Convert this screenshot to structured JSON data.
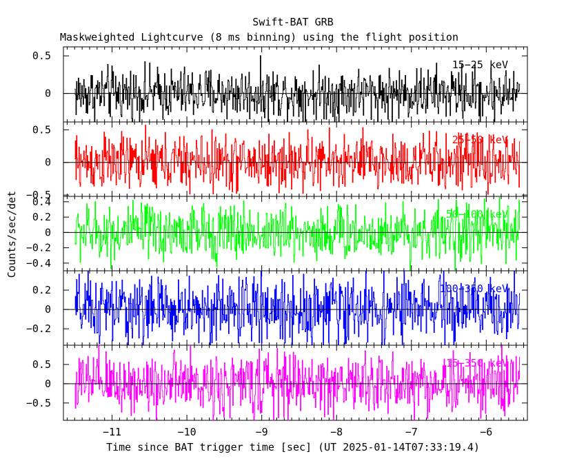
{
  "chart_data": {
    "type": "line",
    "title": "Swift-BAT GRB",
    "subtitle": "Maskweighted Lightcurve (8 ms binning) using the flight position",
    "xlabel": "Time since BAT trigger time [sec] (UT 2025-01-14T07:33:19.4)",
    "ylabel": "Counts/sec/det",
    "xlim": [
      -11.65,
      -5.45
    ],
    "x_range_data": [
      -11.5,
      -5.55
    ],
    "bin_width_sec": 0.008,
    "x_ticks": [
      -11,
      -10,
      -9,
      -8,
      -7,
      -6
    ],
    "x_tick_labels": [
      "−11",
      "−10",
      "−9",
      "−8",
      "−7",
      "−6"
    ],
    "panels": [
      {
        "band": "15-25 keV",
        "label": "15−25 keV",
        "color": "#000000",
        "ylim": [
          -0.38,
          0.62
        ],
        "yticks": [
          0,
          0.5
        ],
        "ytick_labels": [
          "0",
          "0.5"
        ],
        "noise_amplitude": 0.3,
        "baseline": 0
      },
      {
        "band": "25-50 keV",
        "label": "25−50 keV",
        "color": "#ff0000",
        "ylim": [
          -0.52,
          0.62
        ],
        "yticks": [
          -0.5,
          0,
          0.5
        ],
        "ytick_labels": [
          "−0.5",
          "0",
          "0.5"
        ],
        "noise_amplitude": 0.38,
        "baseline": 0
      },
      {
        "band": "50-100 keV",
        "label": "50−100 keV",
        "color": "#00ff00",
        "ylim": [
          -0.5,
          0.47
        ],
        "yticks": [
          -0.4,
          -0.2,
          0,
          0.2,
          0.4
        ],
        "ytick_labels": [
          "−0.4",
          "−0.2",
          "0",
          "0.2",
          "0.4"
        ],
        "noise_amplitude": 0.32,
        "baseline": 0
      },
      {
        "band": "100-350 keV",
        "label": "100−350 keV",
        "color": "#0000ff",
        "ylim": [
          -0.37,
          0.4
        ],
        "yticks": [
          -0.2,
          0,
          0.2
        ],
        "ytick_labels": [
          "−0.2",
          "0",
          "0.2"
        ],
        "noise_amplitude": 0.3,
        "baseline": 0
      },
      {
        "band": "15-350 keV",
        "label": "15−350 keV",
        "color": "#ff00ff",
        "ylim": [
          -0.95,
          1.0
        ],
        "yticks": [
          -0.5,
          0,
          0.5
        ],
        "ytick_labels": [
          "−0.5",
          "0",
          "0.5"
        ],
        "noise_amplitude": 0.7,
        "baseline": 0
      }
    ]
  }
}
